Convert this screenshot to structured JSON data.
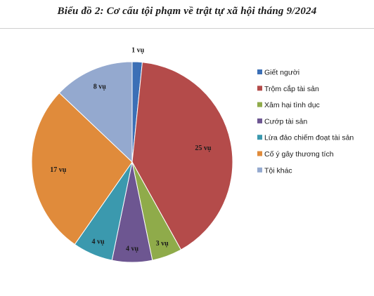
{
  "title": "Biểu đồ 2: Cơ cấu tội phạm về trật tự xã hội tháng 9/2024",
  "chart_data": {
    "type": "pie",
    "title": "Biểu đồ 2: Cơ cấu tội phạm về trật tự xã hội tháng 9/2024",
    "categories": [
      "Giết người",
      "Trộm cắp tài sản",
      "Xâm hại tình dục",
      "Cướp tài sản",
      "Lừa đảo chiếm đoạt tài sản",
      "Cố ý gây thương tích",
      "Tội khác"
    ],
    "values": [
      1,
      25,
      3,
      4,
      4,
      17,
      8
    ],
    "data_labels": [
      "1 vụ",
      "25 vụ",
      "3 vụ",
      "4 vụ",
      "4 vụ",
      "17 vụ",
      "8 vụ"
    ],
    "colors": [
      "#3b6fb6",
      "#b44b4a",
      "#8fab4a",
      "#6d5691",
      "#3b99ae",
      "#e08b3b",
      "#94a9cf"
    ],
    "start_angle_deg": 0,
    "direction": "clockwise",
    "legend_position": "right"
  }
}
